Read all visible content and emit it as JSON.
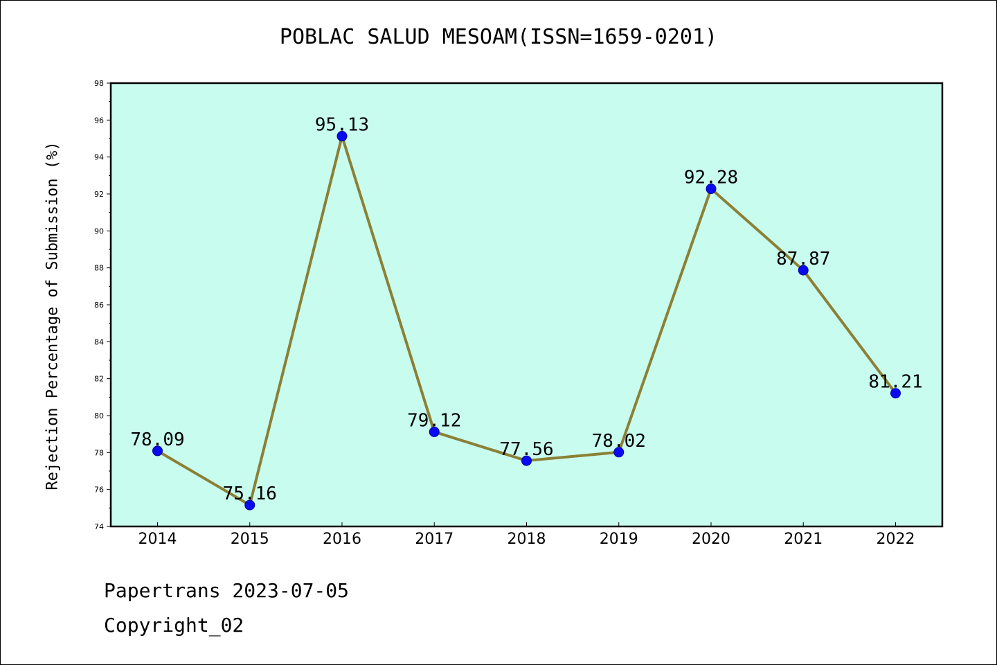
{
  "chart_data": {
    "type": "line",
    "title": "POBLAC SALUD MESOAM(ISSN=1659-0201)",
    "xlabel": "",
    "ylabel": "Rejection Percentage of Submission (%)",
    "categories": [
      "2014",
      "2015",
      "2016",
      "2017",
      "2018",
      "2019",
      "2020",
      "2021",
      "2022"
    ],
    "values": [
      78.09,
      75.16,
      95.13,
      79.12,
      77.56,
      78.02,
      92.28,
      87.87,
      81.21
    ],
    "value_labels": [
      "78.09",
      "75.16",
      "95.13",
      "79.12",
      "77.56",
      "78.02",
      "92.28",
      "87.87",
      "81.21"
    ],
    "ylim": [
      74,
      98
    ],
    "yticks": [
      "74",
      "76",
      "78",
      "80",
      "82",
      "84",
      "86",
      "88",
      "90",
      "92",
      "94",
      "96",
      "98"
    ],
    "grid": false,
    "colors": {
      "plot_background": "#c8fcee",
      "line": "#8b8035",
      "marker": "#0a0af0"
    }
  },
  "footer": {
    "line1": "Papertrans 2023-07-05",
    "line2": "Copyright_02"
  }
}
